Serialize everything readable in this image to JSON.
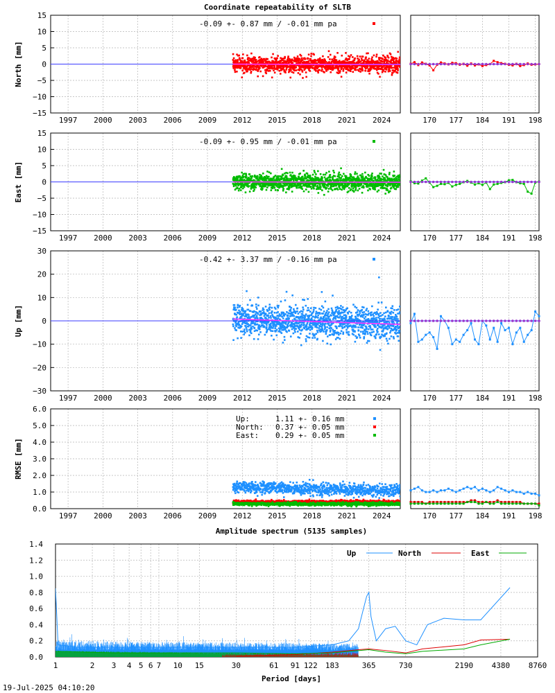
{
  "title": "Coordinate repeatability of SLTB",
  "footer_timestamp": "19-Jul-2025 04:10:20",
  "year_ticks": [
    "1997",
    "2000",
    "2003",
    "2006",
    "2009",
    "2012",
    "2015",
    "2018",
    "2021",
    "2024"
  ],
  "doy_ticks": [
    "170",
    "177",
    "184",
    "191",
    "198"
  ],
  "chart_data": [
    {
      "type": "scatter",
      "id": "north",
      "ylabel": "North [mm]",
      "ylim": [
        -15,
        15
      ],
      "yticks": [
        "15",
        "10",
        "5",
        "0",
        "−5",
        "−10",
        "−15"
      ],
      "annotation": "-0.09 +- 0.87 mm / -0.01 mm pa",
      "color": "#ff0000",
      "xlim_years": [
        1995.5,
        2025.6
      ],
      "data_start_year": 2011.2,
      "data_end_year": 2025.6,
      "trend": [
        -0.02,
        -0.16
      ],
      "scatter_sd": 1.2,
      "recent_doy": [
        165,
        166,
        167,
        168,
        169,
        170,
        171,
        172,
        173,
        174,
        175,
        176,
        177,
        178,
        179,
        180,
        181,
        182,
        183,
        184,
        185,
        186,
        187,
        188,
        189,
        190,
        191,
        192,
        193,
        194,
        195,
        196,
        197,
        198,
        199
      ],
      "recent_values": [
        0.1,
        0.6,
        -0.3,
        0.5,
        0.1,
        -0.4,
        -1.9,
        -0.2,
        0.5,
        0.2,
        -0.1,
        0.4,
        0.3,
        -0.2,
        0.1,
        -0.5,
        0.2,
        -0.4,
        -0.1,
        -0.6,
        -0.3,
        0.0,
        1.0,
        0.6,
        0.3,
        0.1,
        -0.2,
        -0.4,
        0.1,
        -0.6,
        -0.3,
        0.2,
        -0.2,
        -0.1,
        0.0
      ]
    },
    {
      "type": "scatter",
      "id": "east",
      "ylabel": "East [mm]",
      "ylim": [
        -15,
        15
      ],
      "yticks": [
        "15",
        "10",
        "5",
        "0",
        "−5",
        "−10",
        "−15"
      ],
      "annotation": "-0.09 +- 0.95 mm / -0.01 mm pa",
      "color": "#00bb00",
      "xlim_years": [
        1995.5,
        2025.6
      ],
      "data_start_year": 2011.2,
      "data_end_year": 2025.6,
      "trend": [
        0.0,
        -0.1
      ],
      "scatter_sd": 1.2,
      "recent_doy": [
        165,
        166,
        167,
        168,
        169,
        170,
        171,
        172,
        173,
        174,
        175,
        176,
        177,
        178,
        179,
        180,
        181,
        182,
        183,
        184,
        185,
        186,
        187,
        188,
        189,
        190,
        191,
        192,
        193,
        194,
        195,
        196,
        197,
        198,
        199
      ],
      "recent_values": [
        0.2,
        -0.4,
        -0.5,
        0.4,
        1.1,
        -0.2,
        -1.6,
        -1.2,
        -0.6,
        -0.7,
        -0.3,
        -1.4,
        -0.9,
        -0.6,
        -0.1,
        0.3,
        -0.2,
        -0.8,
        -0.4,
        -0.9,
        -0.2,
        -2.2,
        -0.8,
        -0.6,
        -0.3,
        -0.1,
        0.5,
        0.6,
        -0.1,
        -0.4,
        -0.6,
        -3.0,
        -3.6,
        -0.2,
        0.1
      ]
    },
    {
      "type": "scatter",
      "id": "up",
      "ylabel": "Up [mm]",
      "ylim": [
        -30,
        30
      ],
      "yticks": [
        "30",
        "20",
        "10",
        "0",
        "−10",
        "−20",
        "−30"
      ],
      "annotation": "-0.42 +- 3.37 mm / -0.16 mm pa",
      "color": "#1e90ff",
      "xlim_years": [
        1995.5,
        2025.6
      ],
      "data_start_year": 2011.2,
      "data_end_year": 2025.6,
      "trend": [
        0.8,
        -1.5
      ],
      "scatter_sd": 3.4,
      "recent_doy": [
        165,
        166,
        167,
        168,
        169,
        170,
        171,
        172,
        173,
        174,
        175,
        176,
        177,
        178,
        179,
        180,
        181,
        182,
        183,
        184,
        185,
        186,
        187,
        188,
        189,
        190,
        191,
        192,
        193,
        194,
        195,
        196,
        197,
        198,
        199
      ],
      "recent_values": [
        -1.0,
        3.0,
        -9.0,
        -8.0,
        -6.0,
        -5.0,
        -7.0,
        -12.0,
        2.0,
        0.0,
        -3.0,
        -10.0,
        -8.0,
        -9.0,
        -6.0,
        -4.0,
        -1.0,
        -8.0,
        -10.0,
        0.0,
        -2.0,
        -8.0,
        -3.0,
        -9.0,
        -1.0,
        -4.0,
        -3.0,
        -10.0,
        -5.0,
        -3.0,
        -9.0,
        -6.0,
        -4.0,
        4.0,
        2.0
      ]
    },
    {
      "type": "scatter",
      "id": "rmse",
      "ylabel": "RMSE [mm]",
      "ylim": [
        0,
        6
      ],
      "yticks": [
        "6.0",
        "5.0",
        "4.0",
        "3.0",
        "2.0",
        "1.0",
        "0.0"
      ],
      "legend": [
        {
          "label": "Up:",
          "value": "1.11 +- 0.16 mm",
          "color": "#1e90ff"
        },
        {
          "label": "North:",
          "value": "0.37 +- 0.05 mm",
          "color": "#ff0000"
        },
        {
          "label": "East:",
          "value": "0.29 +- 0.05 mm",
          "color": "#00bb00"
        }
      ],
      "xlim_years": [
        1995.5,
        2025.6
      ],
      "data_start_year": 2011.2,
      "data_end_year": 2025.6,
      "series_levels": {
        "up": 1.3,
        "north": 0.4,
        "east": 0.28
      },
      "recent_doy": [
        165,
        166,
        167,
        168,
        169,
        170,
        171,
        172,
        173,
        174,
        175,
        176,
        177,
        178,
        179,
        180,
        181,
        182,
        183,
        184,
        185,
        186,
        187,
        188,
        189,
        190,
        191,
        192,
        193,
        194,
        195,
        196,
        197,
        198,
        199
      ],
      "recent_up": [
        1.1,
        1.2,
        1.3,
        1.1,
        1.0,
        1.0,
        1.1,
        1.0,
        1.1,
        1.1,
        1.2,
        1.1,
        1.0,
        1.1,
        1.2,
        1.3,
        1.2,
        1.3,
        1.1,
        1.2,
        1.1,
        1.0,
        1.1,
        1.3,
        1.2,
        1.1,
        1.0,
        1.1,
        1.0,
        1.0,
        0.9,
        1.0,
        0.9,
        0.9,
        0.8
      ],
      "recent_north": [
        0.4,
        0.4,
        0.4,
        0.4,
        0.3,
        0.4,
        0.4,
        0.4,
        0.4,
        0.4,
        0.4,
        0.4,
        0.4,
        0.4,
        0.4,
        0.4,
        0.5,
        0.5,
        0.4,
        0.4,
        0.4,
        0.4,
        0.4,
        0.5,
        0.4,
        0.4,
        0.4,
        0.4,
        0.4,
        0.4,
        0.3,
        0.3,
        0.3,
        0.3,
        0.3
      ],
      "recent_east": [
        0.3,
        0.3,
        0.3,
        0.3,
        0.3,
        0.3,
        0.3,
        0.3,
        0.3,
        0.3,
        0.3,
        0.3,
        0.3,
        0.3,
        0.3,
        0.4,
        0.4,
        0.4,
        0.3,
        0.3,
        0.4,
        0.3,
        0.3,
        0.4,
        0.3,
        0.3,
        0.3,
        0.3,
        0.3,
        0.3,
        0.3,
        0.3,
        0.3,
        0.3,
        0.2
      ]
    },
    {
      "type": "line",
      "id": "spectrum",
      "title": "Amplitude spectrum (5135 samples)",
      "xlabel": "Period [days]",
      "xscale": "log",
      "xlim": [
        1,
        8760
      ],
      "ylim": [
        0,
        1.4
      ],
      "yticks": [
        "1.4",
        "1.2",
        "1.0",
        "0.8",
        "0.6",
        "0.4",
        "0.2",
        "0.0"
      ],
      "xticks": [
        1,
        2,
        3,
        4,
        5,
        6,
        7,
        10,
        15,
        30,
        61,
        91,
        122,
        183,
        365,
        730,
        2190,
        4380,
        8760
      ],
      "xtick_labels": [
        "1",
        "2",
        "3",
        "4",
        "5",
        "6",
        "7",
        "10",
        "15",
        "30",
        "61",
        "91",
        "122",
        "183",
        "365",
        "730",
        "2190",
        "4380",
        "8760"
      ],
      "series": [
        {
          "name": "Up",
          "color": "#1e90ff",
          "x": [
            1,
            1.05,
            1.5,
            3,
            10,
            30,
            91,
            183,
            250,
            300,
            330,
            350,
            365,
            380,
            420,
            500,
            600,
            730,
            900,
            1100,
            1500,
            2190,
            3000,
            5200
          ],
          "y": [
            0.85,
            0.15,
            0.12,
            0.12,
            0.12,
            0.12,
            0.12,
            0.15,
            0.2,
            0.35,
            0.6,
            0.75,
            0.8,
            0.5,
            0.2,
            0.35,
            0.38,
            0.2,
            0.15,
            0.4,
            0.48,
            0.46,
            0.46,
            0.86
          ]
        },
        {
          "name": "North",
          "color": "#dd0000",
          "x": [
            30,
            91,
            183,
            300,
            365,
            500,
            730,
            1000,
            2190,
            3000,
            5200
          ],
          "y": [
            0.01,
            0.03,
            0.06,
            0.09,
            0.1,
            0.08,
            0.05,
            0.1,
            0.15,
            0.21,
            0.22
          ]
        },
        {
          "name": "East",
          "color": "#00aa00",
          "x": [
            1,
            3,
            10,
            30,
            91,
            183,
            365,
            500,
            730,
            1000,
            2190,
            3000,
            5200
          ],
          "y": [
            0.07,
            0.05,
            0.05,
            0.05,
            0.04,
            0.05,
            0.09,
            0.06,
            0.04,
            0.07,
            0.1,
            0.15,
            0.22
          ]
        }
      ]
    }
  ]
}
